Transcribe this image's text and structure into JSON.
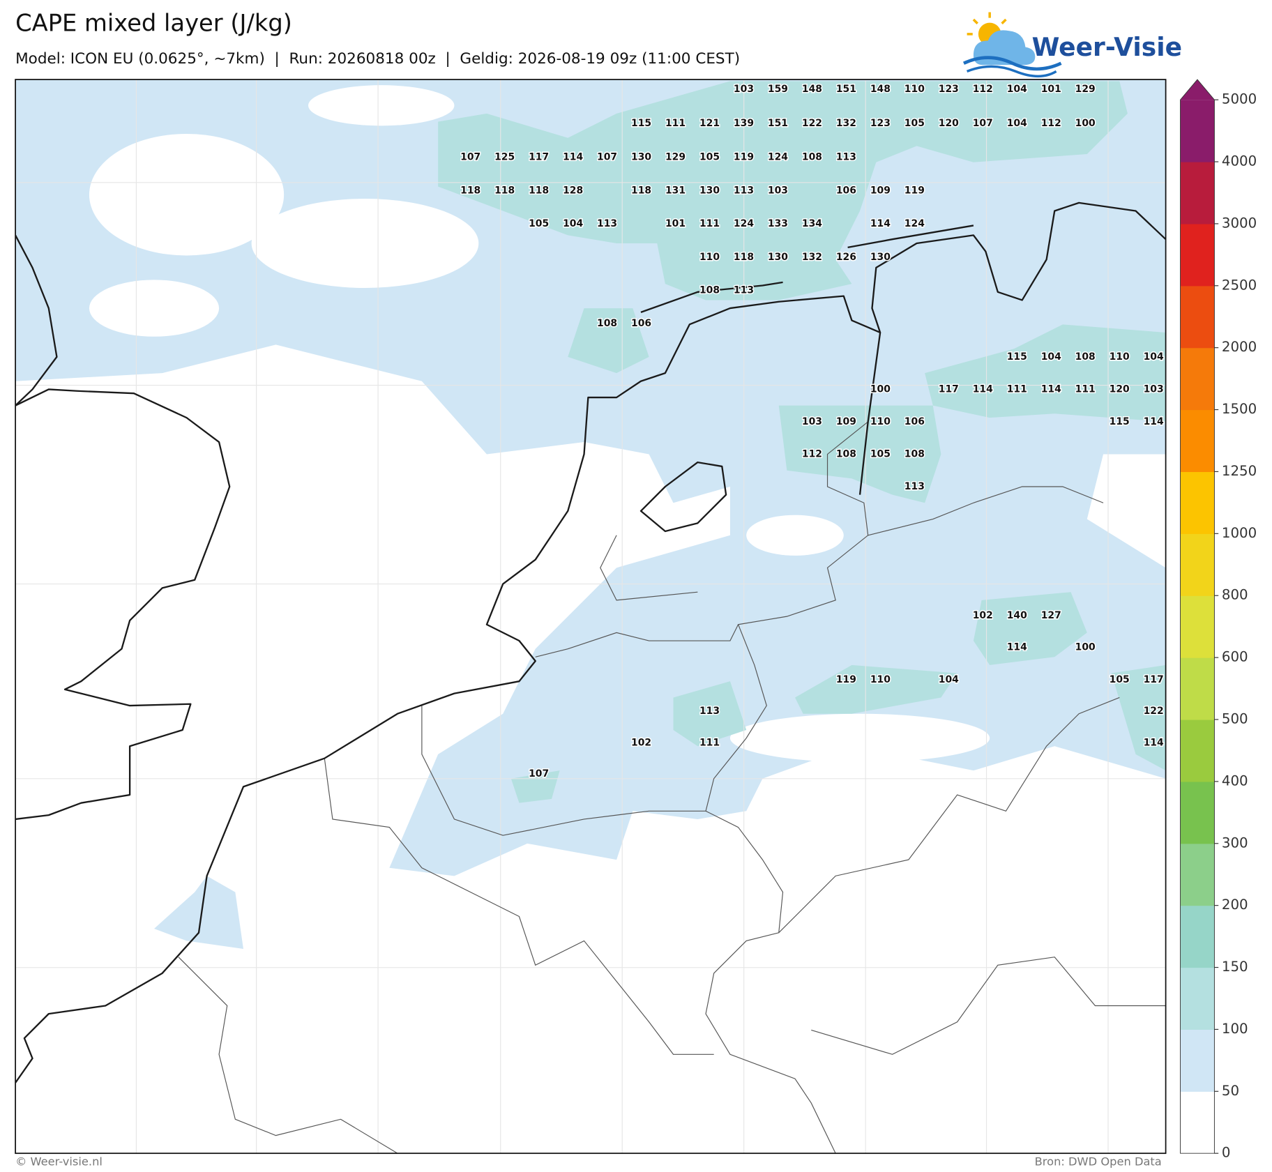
{
  "header": {
    "title": "CAPE mixed layer (J/kg)",
    "subtitle": "Model: ICON EU (0.0625°, ~7km)  |  Run: 20260818 00z  |  Geldig: 2026-08-19 09z (11:00 CEST)",
    "logo": "Weer-Visie"
  },
  "map": {
    "value_grid": [
      [
        null,
        null,
        null,
        null,
        null,
        null,
        null,
        null,
        103,
        159,
        148,
        151,
        148,
        110,
        123,
        112,
        104,
        101,
        129,
        null,
        null
      ],
      [
        null,
        null,
        null,
        null,
        null,
        115,
        111,
        121,
        139,
        151,
        122,
        132,
        123,
        105,
        120,
        107,
        104,
        112,
        100,
        null,
        null
      ],
      [
        107,
        125,
        117,
        114,
        107,
        130,
        129,
        105,
        119,
        124,
        108,
        113,
        null,
        null,
        null,
        null,
        null,
        null,
        null,
        null,
        null
      ],
      [
        118,
        118,
        118,
        128,
        null,
        118,
        131,
        130,
        113,
        103,
        null,
        106,
        109,
        119,
        null,
        null,
        null,
        null,
        null,
        null,
        null
      ],
      [
        null,
        null,
        105,
        104,
        113,
        null,
        101,
        111,
        124,
        133,
        134,
        null,
        114,
        124,
        null,
        null,
        null,
        null,
        null,
        null,
        null
      ],
      [
        null,
        null,
        null,
        null,
        null,
        null,
        null,
        110,
        118,
        130,
        132,
        126,
        130,
        null,
        null,
        null,
        null,
        null,
        null,
        null,
        null
      ],
      [
        null,
        null,
        null,
        null,
        null,
        null,
        null,
        108,
        113,
        null,
        null,
        null,
        null,
        null,
        null,
        null,
        null,
        null,
        null,
        null,
        null
      ],
      [
        null,
        null,
        null,
        null,
        108,
        106,
        null,
        null,
        null,
        null,
        null,
        null,
        null,
        null,
        null,
        null,
        null,
        null,
        null,
        null,
        null
      ],
      [
        null,
        null,
        null,
        null,
        null,
        null,
        null,
        null,
        null,
        null,
        null,
        null,
        null,
        null,
        null,
        null,
        115,
        104,
        108,
        110,
        104
      ],
      [
        null,
        null,
        null,
        null,
        null,
        null,
        null,
        null,
        null,
        null,
        null,
        null,
        100,
        null,
        117,
        114,
        111,
        114,
        111,
        120,
        103
      ],
      [
        null,
        null,
        null,
        null,
        null,
        null,
        null,
        null,
        null,
        null,
        103,
        109,
        110,
        106,
        null,
        null,
        null,
        null,
        null,
        115,
        114
      ],
      [
        null,
        null,
        null,
        null,
        null,
        null,
        null,
        null,
        null,
        null,
        112,
        108,
        105,
        108,
        null,
        null,
        null,
        null,
        null,
        null,
        null
      ],
      [
        null,
        null,
        null,
        null,
        null,
        null,
        null,
        null,
        null,
        null,
        null,
        null,
        null,
        113,
        null,
        null,
        null,
        null,
        null,
        null,
        null
      ],
      [
        null,
        null,
        null,
        null,
        null,
        null,
        null,
        null,
        null,
        null,
        null,
        null,
        null,
        null,
        null,
        102,
        140,
        127,
        null,
        null,
        null
      ],
      [
        null,
        null,
        null,
        null,
        null,
        null,
        null,
        null,
        null,
        null,
        null,
        null,
        null,
        null,
        null,
        null,
        114,
        null,
        100,
        null,
        null
      ],
      [
        null,
        null,
        null,
        null,
        null,
        null,
        null,
        null,
        null,
        null,
        null,
        119,
        110,
        null,
        104,
        null,
        null,
        null,
        null,
        105,
        117
      ],
      [
        null,
        null,
        null,
        null,
        null,
        null,
        null,
        113,
        null,
        null,
        null,
        null,
        null,
        null,
        null,
        null,
        null,
        null,
        null,
        null,
        122
      ],
      [
        null,
        null,
        null,
        null,
        null,
        102,
        null,
        111,
        null,
        null,
        null,
        null,
        null,
        null,
        null,
        null,
        null,
        null,
        null,
        null,
        114
      ],
      [
        null,
        null,
        107,
        null,
        null,
        null,
        null,
        null,
        null,
        null,
        null,
        null,
        null,
        null,
        null,
        null,
        null,
        null,
        null,
        null,
        null
      ]
    ]
  },
  "colorbar": {
    "levels": [
      0,
      50,
      100,
      150,
      200,
      300,
      400,
      500,
      600,
      800,
      1000,
      1250,
      1500,
      2000,
      2500,
      3000,
      4000,
      5000
    ],
    "colors": [
      "#ffffff",
      "#d0e6f5",
      "#b4e0e0",
      "#96d5c8",
      "#8ccf8a",
      "#78c24e",
      "#9acb3e",
      "#bfdc48",
      "#dde03a",
      "#f2d41a",
      "#fcc400",
      "#fb8c00",
      "#f57a0a",
      "#ec4d10",
      "#e0221e",
      "#b81c3c",
      "#8a1c6a"
    ],
    "extend_color": "#8a1c6a"
  },
  "footer": {
    "copyright": "© Weer-visie.nl",
    "source": "Bron: DWD Open Data"
  }
}
